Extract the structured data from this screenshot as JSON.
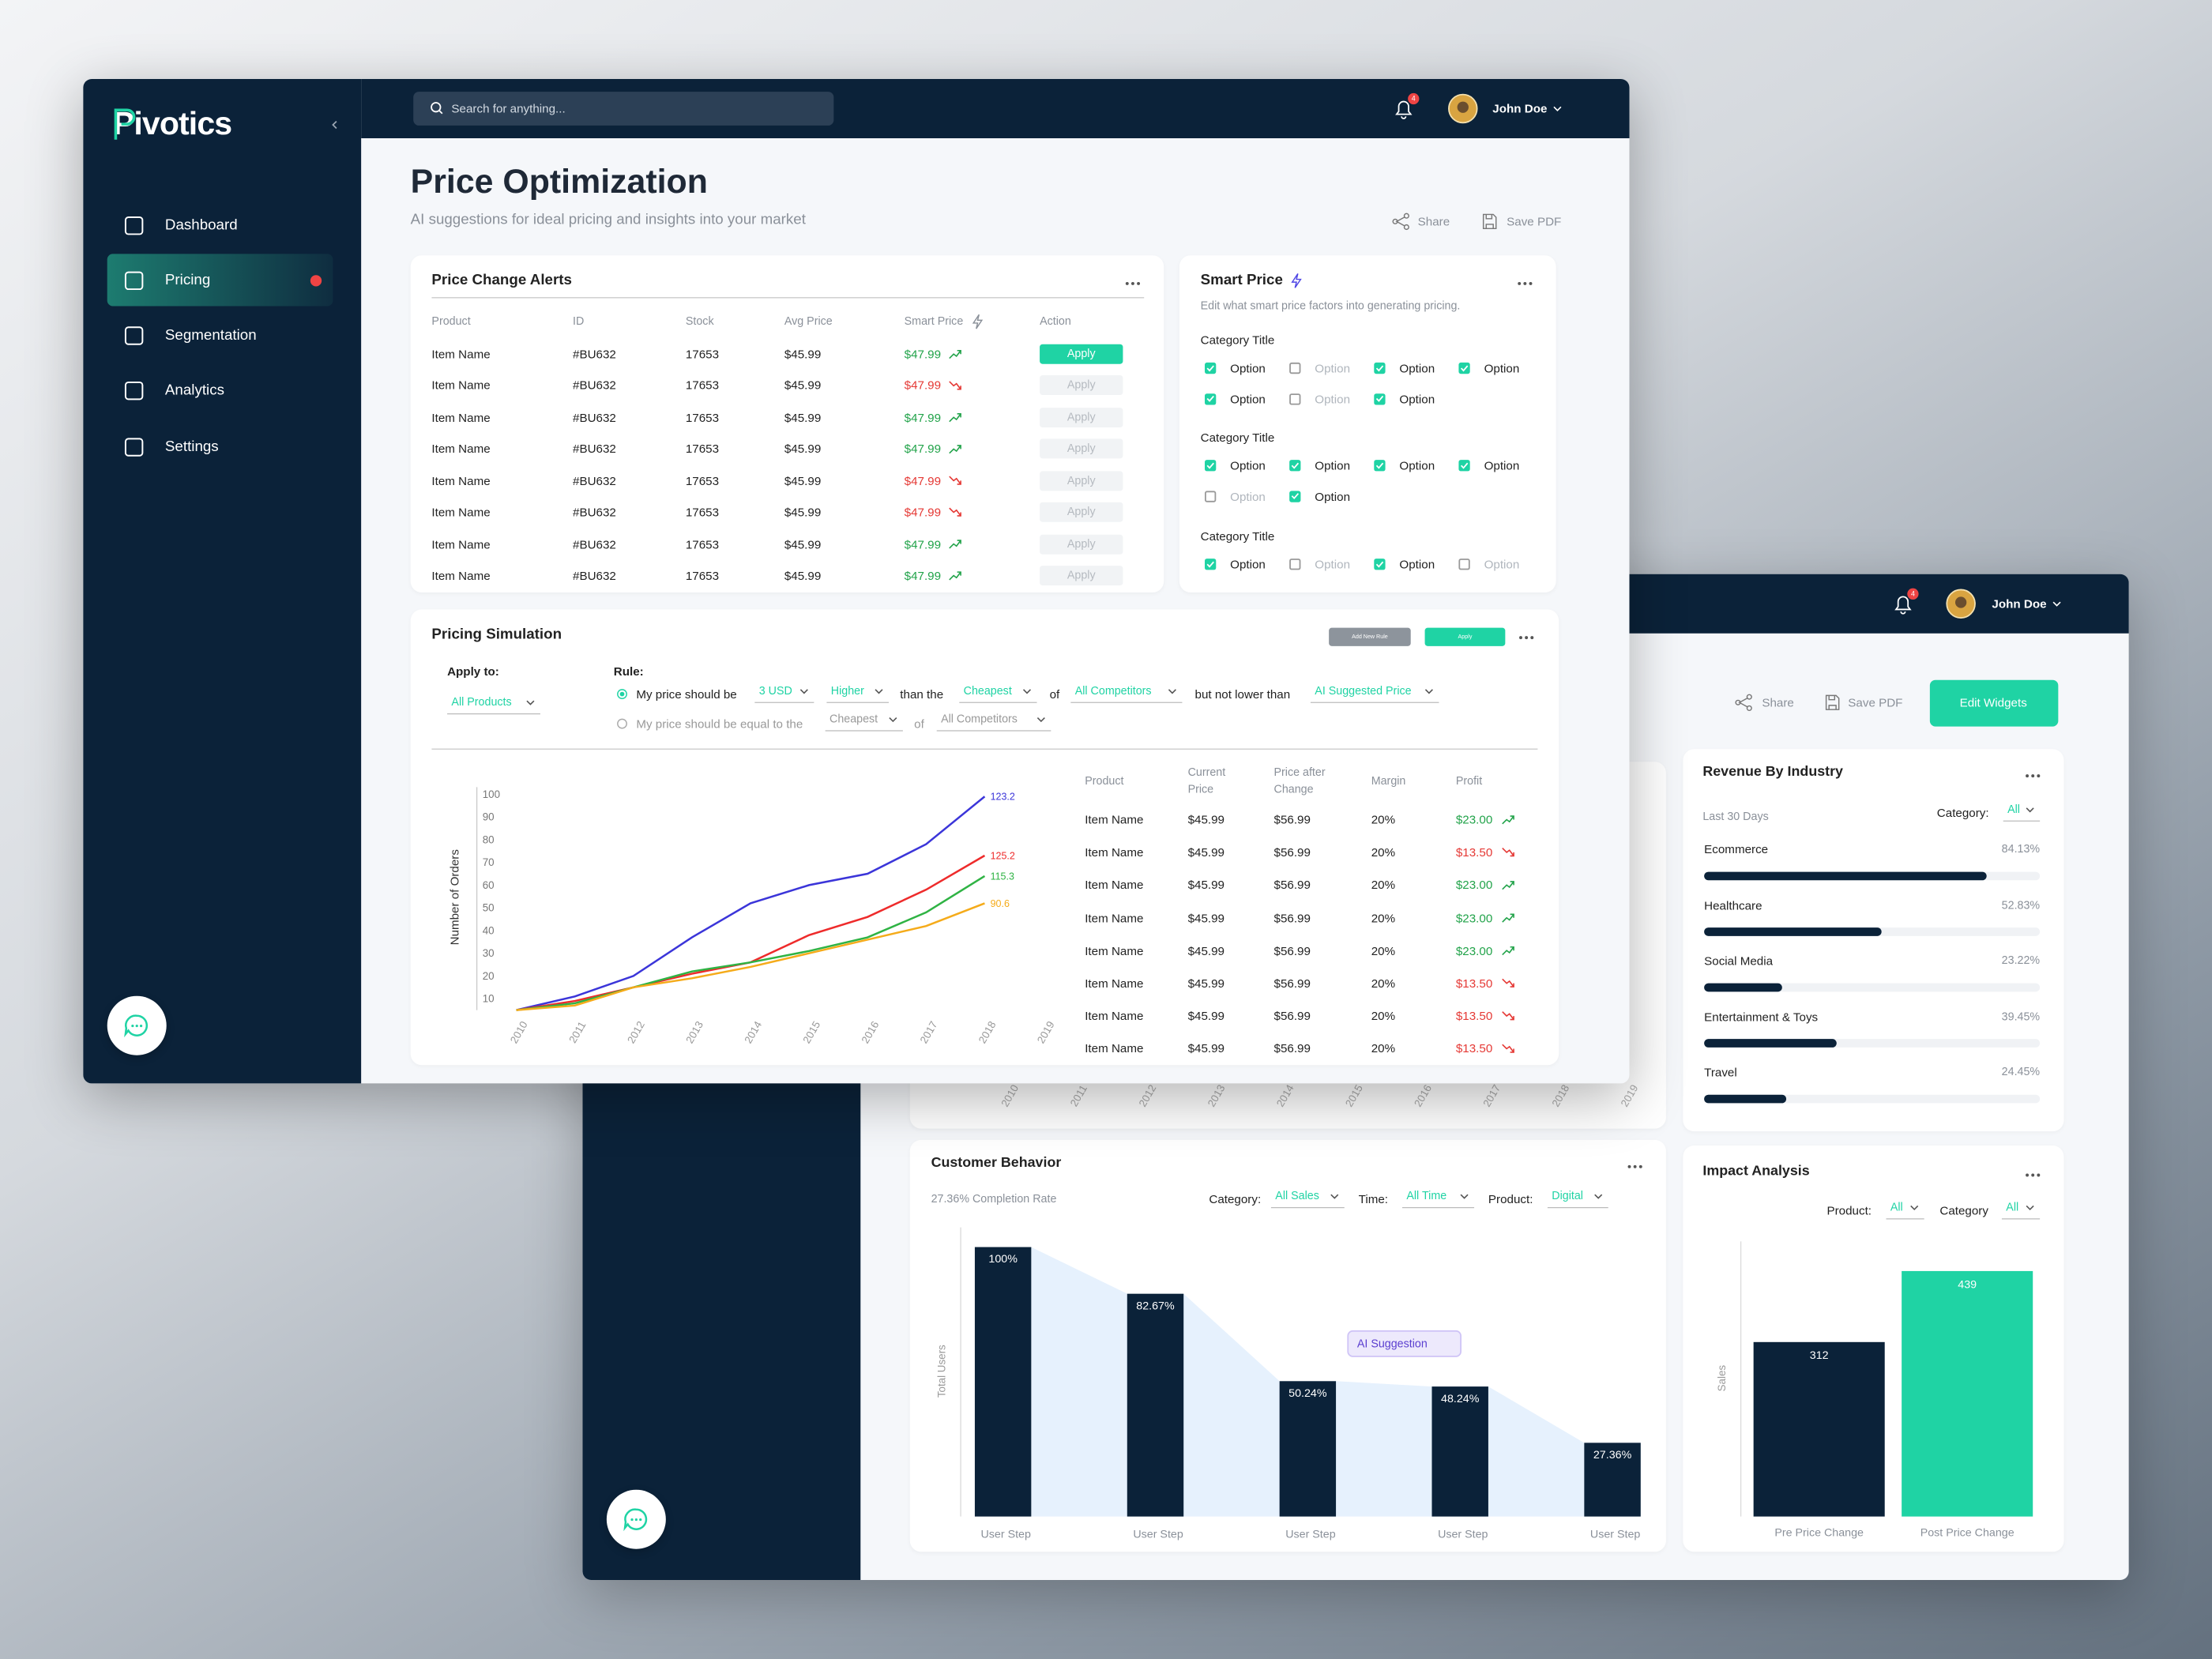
{
  "back": {
    "notifications": 4,
    "user": "John Doe",
    "share": "Share",
    "save_pdf": "Save PDF",
    "edit_widgets": "Edit Widgets",
    "hidden_chart_x": [
      "2010",
      "2011",
      "2012",
      "2013",
      "2014",
      "2015",
      "2016",
      "2017",
      "2018",
      "2019"
    ],
    "revenue": {
      "title": "Revenue By Industry",
      "period": "Last 30 Days",
      "category_label": "Category:",
      "category": "All",
      "type": "bar",
      "categories": [
        "Ecommerce",
        "Healthcare",
        "Social Media",
        "Entertainment & Toys",
        "Travel"
      ],
      "values": [
        84.13,
        52.83,
        23.22,
        39.45,
        24.45
      ],
      "value_labels": [
        "84.13%",
        "52.83%",
        "23.22%",
        "39.45%",
        "24.45%"
      ],
      "xlim": [
        0,
        100
      ],
      "color": "#0b2239"
    },
    "behavior": {
      "title": "Customer Behavior",
      "completion": "27.36% Completion Rate",
      "filters": [
        {
          "label": "Category:",
          "value": "All Sales"
        },
        {
          "label": "Time:",
          "value": "All Time"
        },
        {
          "label": "Product:",
          "value": "Digital"
        }
      ],
      "type": "bar",
      "y_label": "Total Users",
      "categories": [
        "User Step",
        "User Step",
        "User Step",
        "User Step",
        "User Step"
      ],
      "values": [
        100,
        82.67,
        50.24,
        48.24,
        27.36
      ],
      "value_labels": [
        "100%",
        "82.67%",
        "50.24%",
        "48.24%",
        "27.36%"
      ],
      "color": "#0b2239",
      "annotation": "AI Suggestion"
    },
    "impact": {
      "title": "Impact Analysis",
      "filters": [
        {
          "label": "Product:",
          "value": "All"
        },
        {
          "label": "Category",
          "value": "All"
        }
      ],
      "type": "bar",
      "y_label": "Sales",
      "categories": [
        "Pre Price Change",
        "Post Price Change"
      ],
      "values": [
        312,
        439
      ],
      "colors": [
        "#0b2239",
        "#1fd3a4"
      ]
    }
  },
  "front": {
    "logo": "Pivotics",
    "nav": [
      {
        "label": "Dashboard",
        "active": false
      },
      {
        "label": "Pricing",
        "active": true
      },
      {
        "label": "Segmentation",
        "active": false
      },
      {
        "label": "Analytics",
        "active": false
      },
      {
        "label": "Settings",
        "active": false
      }
    ],
    "search_placeholder": "Search for anything...",
    "notifications": 4,
    "user": "John Doe",
    "title": "Price Optimization",
    "subtitle": "AI suggestions for ideal pricing and insights into your market",
    "share": "Share",
    "save_pdf": "Save PDF",
    "alerts": {
      "title": "Price Change Alerts",
      "columns": [
        "Product",
        "ID",
        "Stock",
        "Avg Price",
        "Smart Price",
        "Action"
      ],
      "rows": [
        {
          "product": "Item Name",
          "id": "#BU632",
          "stock": "17653",
          "avg_price": "$45.99",
          "smart_price": "$47.99",
          "trend": "up",
          "action": "Apply",
          "active": true
        },
        {
          "product": "Item Name",
          "id": "#BU632",
          "stock": "17653",
          "avg_price": "$45.99",
          "smart_price": "$47.99",
          "trend": "down",
          "action": "Apply",
          "active": false
        },
        {
          "product": "Item Name",
          "id": "#BU632",
          "stock": "17653",
          "avg_price": "$45.99",
          "smart_price": "$47.99",
          "trend": "up",
          "action": "Apply",
          "active": false
        },
        {
          "product": "Item Name",
          "id": "#BU632",
          "stock": "17653",
          "avg_price": "$45.99",
          "smart_price": "$47.99",
          "trend": "up",
          "action": "Apply",
          "active": false
        },
        {
          "product": "Item Name",
          "id": "#BU632",
          "stock": "17653",
          "avg_price": "$45.99",
          "smart_price": "$47.99",
          "trend": "down",
          "action": "Apply",
          "active": false
        },
        {
          "product": "Item Name",
          "id": "#BU632",
          "stock": "17653",
          "avg_price": "$45.99",
          "smart_price": "$47.99",
          "trend": "down",
          "action": "Apply",
          "active": false
        },
        {
          "product": "Item Name",
          "id": "#BU632",
          "stock": "17653",
          "avg_price": "$45.99",
          "smart_price": "$47.99",
          "trend": "up",
          "action": "Apply",
          "active": false
        },
        {
          "product": "Item Name",
          "id": "#BU632",
          "stock": "17653",
          "avg_price": "$45.99",
          "smart_price": "$47.99",
          "trend": "up",
          "action": "Apply",
          "active": false
        }
      ]
    },
    "smart_price": {
      "title": "Smart Price",
      "description": "Edit what smart price factors into generating pricing.",
      "groups": [
        {
          "title": "Category Title",
          "options": [
            {
              "label": "Option",
              "checked": true
            },
            {
              "label": "Option",
              "checked": false
            },
            {
              "label": "Option",
              "checked": true
            },
            {
              "label": "Option",
              "checked": true
            },
            {
              "label": "Option",
              "checked": true
            },
            {
              "label": "Option",
              "checked": false
            },
            {
              "label": "Option",
              "checked": true
            }
          ]
        },
        {
          "title": "Category Title",
          "options": [
            {
              "label": "Option",
              "checked": true
            },
            {
              "label": "Option",
              "checked": true
            },
            {
              "label": "Option",
              "checked": true
            },
            {
              "label": "Option",
              "checked": true
            },
            {
              "label": "Option",
              "checked": false
            },
            {
              "label": "Option",
              "checked": true
            }
          ]
        },
        {
          "title": "Category Title",
          "options": [
            {
              "label": "Option",
              "checked": true
            },
            {
              "label": "Option",
              "checked": false
            },
            {
              "label": "Option",
              "checked": true
            },
            {
              "label": "Option",
              "checked": false
            }
          ]
        }
      ]
    },
    "simulation": {
      "title": "Pricing Simulation",
      "add_rule": "Add New Rule",
      "apply": "Apply",
      "apply_to_label": "Apply to:",
      "apply_to": "All Products",
      "rule_label": "Rule:",
      "rule1": {
        "text": "My price should be",
        "amount": "3 USD",
        "direction": "Higher",
        "than": "than the",
        "target": "Cheapest",
        "of": "of",
        "competitors": "All Competitors",
        "floor_text": "but not lower than",
        "floor": "AI Suggested Price",
        "selected": true
      },
      "rule2": {
        "text": "My price should be equal to the",
        "target": "Cheapest",
        "of": "of",
        "competitors": "All Competitors",
        "selected": false
      },
      "chart": {
        "type": "line",
        "y_label": "Number of Orders",
        "categories": [
          "2010",
          "2011",
          "2012",
          "2013",
          "2014",
          "2015",
          "2016",
          "2017",
          "2018",
          "2019"
        ],
        "ylim": [
          5,
          100
        ],
        "yticks": [
          10,
          20,
          30,
          40,
          50,
          60,
          70,
          80,
          90,
          100
        ],
        "series": [
          {
            "color": "#3b35d9",
            "values": [
              5,
              11,
              20,
              37,
              52,
              60,
              65,
              78,
              99,
              null
            ],
            "annotation": "123.2"
          },
          {
            "color": "#ee2b2b",
            "values": [
              5,
              9,
              15,
              21,
              26,
              38,
              46,
              58,
              73,
              null
            ],
            "annotation": "125.2"
          },
          {
            "color": "#2fb344",
            "values": [
              5,
              8,
              15,
              22,
              26,
              31,
              37,
              48,
              64,
              null
            ],
            "annotation": "115.3"
          },
          {
            "color": "#f5ab1a",
            "values": [
              5,
              7,
              15,
              19,
              24,
              30,
              36,
              42,
              52,
              null
            ],
            "annotation": "90.6"
          }
        ]
      },
      "results": {
        "columns": [
          "Product",
          "Current Price",
          "Price after Change",
          "Margin",
          "Profit"
        ],
        "rows": [
          {
            "product": "Item Name",
            "current": "$45.99",
            "after": "$56.99",
            "margin": "20%",
            "profit": "$23.00",
            "trend": "up"
          },
          {
            "product": "Item Name",
            "current": "$45.99",
            "after": "$56.99",
            "margin": "20%",
            "profit": "$13.50",
            "trend": "down"
          },
          {
            "product": "Item Name",
            "current": "$45.99",
            "after": "$56.99",
            "margin": "20%",
            "profit": "$23.00",
            "trend": "up"
          },
          {
            "product": "Item Name",
            "current": "$45.99",
            "after": "$56.99",
            "margin": "20%",
            "profit": "$23.00",
            "trend": "up"
          },
          {
            "product": "Item Name",
            "current": "$45.99",
            "after": "$56.99",
            "margin": "20%",
            "profit": "$23.00",
            "trend": "up"
          },
          {
            "product": "Item Name",
            "current": "$45.99",
            "after": "$56.99",
            "margin": "20%",
            "profit": "$13.50",
            "trend": "down"
          },
          {
            "product": "Item Name",
            "current": "$45.99",
            "after": "$56.99",
            "margin": "20%",
            "profit": "$13.50",
            "trend": "down"
          },
          {
            "product": "Item Name",
            "current": "$45.99",
            "after": "$56.99",
            "margin": "20%",
            "profit": "$13.50",
            "trend": "down"
          }
        ]
      }
    }
  }
}
